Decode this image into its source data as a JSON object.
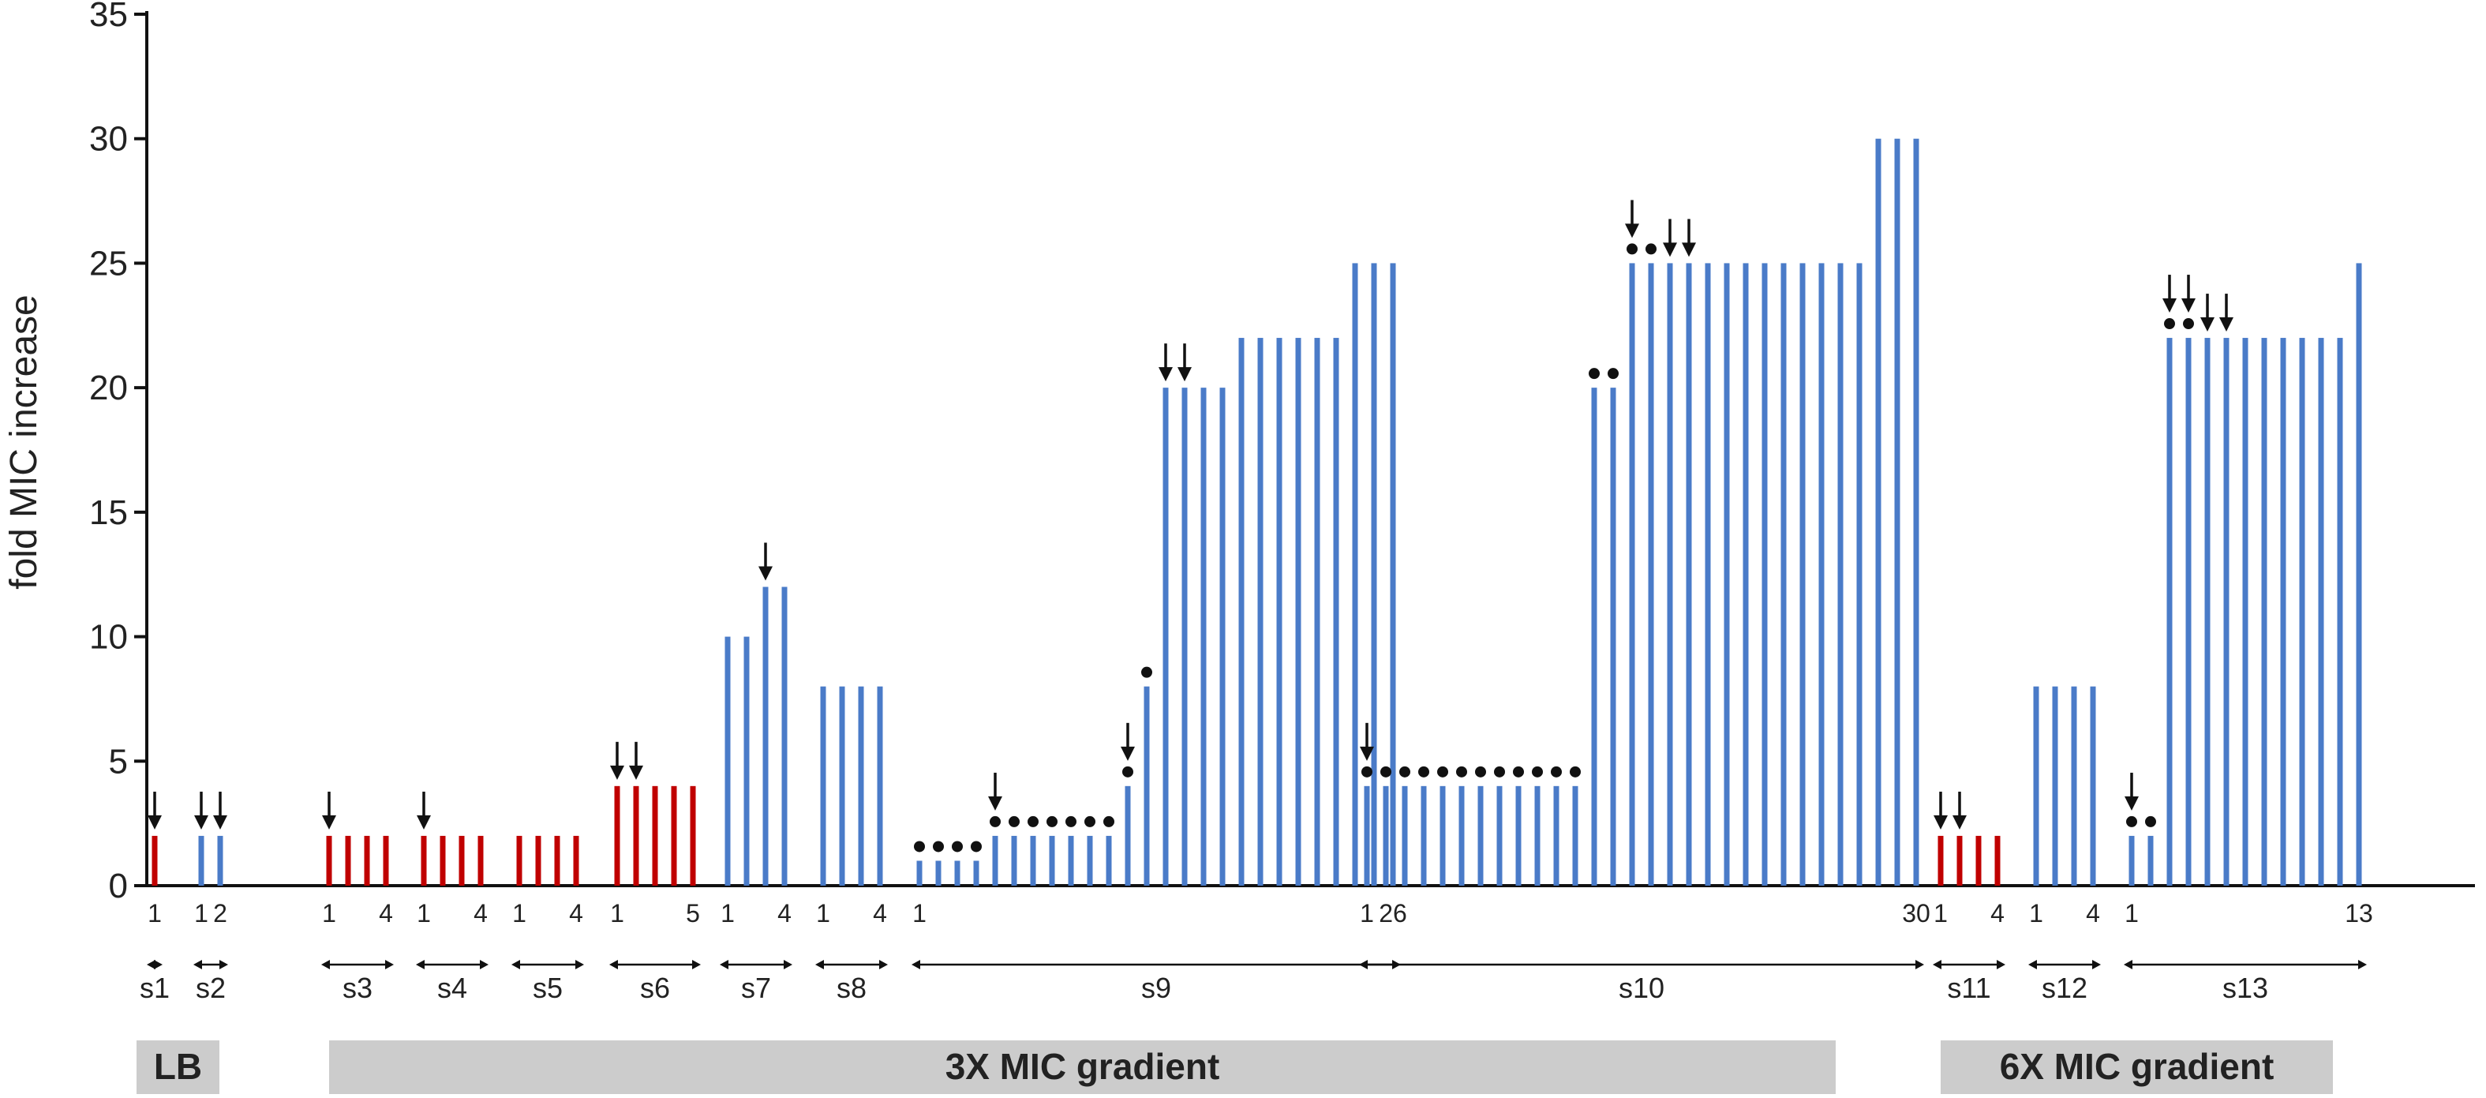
{
  "chart_data": {
    "type": "bar",
    "ylabel": "fold MIC increase",
    "ylim": [
      0,
      35
    ],
    "yticks": [
      0,
      5,
      10,
      15,
      20,
      25,
      30,
      35
    ],
    "colors": {
      "red": "#c00000",
      "blue": "#4a7bc8"
    },
    "series": [
      {
        "name": "s1",
        "color": "red",
        "values": [
          2
        ],
        "first_label": "1",
        "last_label": "",
        "arrows": [
          0
        ],
        "dots": []
      },
      {
        "name": "s2",
        "color": "blue",
        "values": [
          2,
          2
        ],
        "first_label": "1",
        "last_label": "2",
        "arrows": [
          0,
          1
        ],
        "dots": []
      },
      {
        "name": "s3",
        "color": "red",
        "values": [
          2,
          2,
          2,
          2
        ],
        "first_label": "1",
        "last_label": "4",
        "arrows": [
          0
        ],
        "dots": []
      },
      {
        "name": "s4",
        "color": "red",
        "values": [
          2,
          2,
          2,
          2
        ],
        "first_label": "1",
        "last_label": "4",
        "arrows": [
          0
        ],
        "dots": []
      },
      {
        "name": "s5",
        "color": "red",
        "values": [
          2,
          2,
          2,
          2
        ],
        "first_label": "1",
        "last_label": "4",
        "arrows": [],
        "dots": []
      },
      {
        "name": "s6",
        "color": "red",
        "values": [
          4,
          4,
          4,
          4,
          4
        ],
        "first_label": "1",
        "last_label": "5",
        "arrows": [
          0,
          1
        ],
        "dots": []
      },
      {
        "name": "s7",
        "color": "blue",
        "values": [
          10,
          10,
          12,
          12
        ],
        "first_label": "1",
        "last_label": "4",
        "arrows": [
          2
        ],
        "dots": []
      },
      {
        "name": "s8",
        "color": "blue",
        "values": [
          8,
          8,
          8,
          8
        ],
        "first_label": "1",
        "last_label": "4",
        "arrows": [],
        "dots": []
      },
      {
        "name": "s9",
        "color": "blue",
        "values": [
          1,
          1,
          1,
          1,
          2,
          2,
          2,
          2,
          2,
          2,
          2,
          4,
          8,
          20,
          20,
          20,
          20,
          22,
          22,
          22,
          22,
          22,
          22,
          25,
          25,
          25
        ],
        "first_label": "1",
        "last_label": "26",
        "arrows": [
          4,
          11,
          13,
          14
        ],
        "dots": [
          0,
          1,
          2,
          3,
          4,
          5,
          6,
          7,
          8,
          9,
          10,
          11,
          12
        ]
      },
      {
        "name": "s10",
        "color": "blue",
        "values": [
          4,
          4,
          4,
          4,
          4,
          4,
          4,
          4,
          4,
          4,
          4,
          4,
          20,
          20,
          25,
          25,
          25,
          25,
          25,
          25,
          25,
          25,
          25,
          25,
          25,
          25,
          25,
          30,
          30,
          30
        ],
        "first_label": "1",
        "last_label": "30",
        "arrows": [
          0,
          14,
          16,
          17
        ],
        "dots": [
          0,
          1,
          2,
          3,
          4,
          5,
          6,
          7,
          8,
          9,
          10,
          11,
          12,
          13,
          14,
          15
        ]
      },
      {
        "name": "s11",
        "color": "red",
        "values": [
          2,
          2,
          2,
          2
        ],
        "first_label": "1",
        "last_label": "4",
        "arrows": [
          0,
          1
        ],
        "dots": []
      },
      {
        "name": "s12",
        "color": "blue",
        "values": [
          8,
          8,
          8,
          8
        ],
        "first_label": "1",
        "last_label": "4",
        "arrows": [],
        "dots": []
      },
      {
        "name": "s13",
        "color": "blue",
        "values": [
          2,
          2,
          22,
          22,
          22,
          22,
          22,
          22,
          22,
          22,
          22,
          22,
          25
        ],
        "first_label": "1",
        "last_label": "13",
        "arrows": [
          0,
          2,
          3,
          4,
          5
        ],
        "dots": [
          0,
          1,
          2,
          3
        ]
      }
    ],
    "groups": [
      {
        "label": "LB",
        "series": [
          "s1",
          "s2"
        ]
      },
      {
        "label": "3X MIC gradient",
        "series": [
          "s3",
          "s4",
          "s5",
          "s6",
          "s7",
          "s8",
          "s9",
          "s10"
        ]
      },
      {
        "label": "6X MIC gradient",
        "series": [
          "s11",
          "s12",
          "s13"
        ]
      }
    ]
  }
}
